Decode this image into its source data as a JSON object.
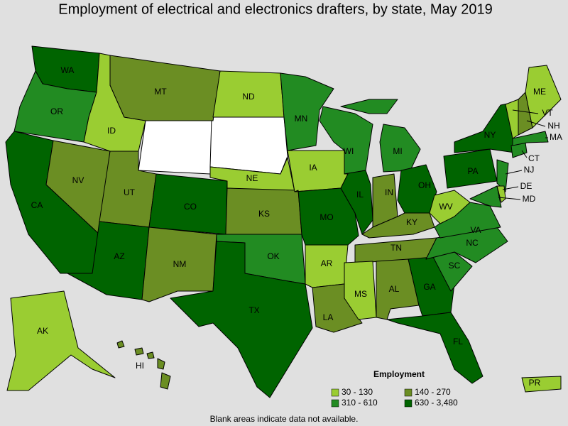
{
  "title": "Employment of electrical and electronics drafters, by state, May 2019",
  "legend": {
    "title": "Employment",
    "items": [
      {
        "label": "30 - 130",
        "color": "#9acd32"
      },
      {
        "label": "140 - 270",
        "color": "#6b8e23"
      },
      {
        "label": "310 - 610",
        "color": "#228b22"
      },
      {
        "label": "630 - 3,480",
        "color": "#006400"
      }
    ]
  },
  "states": [
    {
      "abbr": "WA",
      "employment": "630 - 3,480"
    },
    {
      "abbr": "OR",
      "employment": "310 - 610"
    },
    {
      "abbr": "CA",
      "employment": "630 - 3,480"
    },
    {
      "abbr": "NV",
      "employment": "140 - 270"
    },
    {
      "abbr": "ID",
      "employment": "30 - 130"
    },
    {
      "abbr": "MT",
      "employment": "140 - 270"
    },
    {
      "abbr": "UT",
      "employment": "140 - 270"
    },
    {
      "abbr": "AZ",
      "employment": "630 - 3,480"
    },
    {
      "abbr": "CO",
      "employment": "630 - 3,480"
    },
    {
      "abbr": "NM",
      "employment": "140 - 270"
    },
    {
      "abbr": "ND",
      "employment": "30 - 130"
    },
    {
      "abbr": "NE",
      "employment": "30 - 130"
    },
    {
      "abbr": "KS",
      "employment": "140 - 270"
    },
    {
      "abbr": "OK",
      "employment": "310 - 610"
    },
    {
      "abbr": "TX",
      "employment": "630 - 3,480"
    },
    {
      "abbr": "MN",
      "employment": "310 - 610"
    },
    {
      "abbr": "IA",
      "employment": "30 - 130"
    },
    {
      "abbr": "MO",
      "employment": "630 - 3,480"
    },
    {
      "abbr": "AR",
      "employment": "30 - 130"
    },
    {
      "abbr": "LA",
      "employment": "140 - 270"
    },
    {
      "abbr": "WI",
      "employment": "310 - 610"
    },
    {
      "abbr": "MI",
      "employment": "310 - 610"
    },
    {
      "abbr": "IL",
      "employment": "630 - 3,480"
    },
    {
      "abbr": "IN",
      "employment": "140 - 270"
    },
    {
      "abbr": "OH",
      "employment": "630 - 3,480"
    },
    {
      "abbr": "KY",
      "employment": "140 - 270"
    },
    {
      "abbr": "TN",
      "employment": "140 - 270"
    },
    {
      "abbr": "MS",
      "employment": "30 - 130"
    },
    {
      "abbr": "AL",
      "employment": "140 - 270"
    },
    {
      "abbr": "GA",
      "employment": "630 - 3,480"
    },
    {
      "abbr": "FL",
      "employment": "630 - 3,480"
    },
    {
      "abbr": "SC",
      "employment": "310 - 610"
    },
    {
      "abbr": "NC",
      "employment": "310 - 610"
    },
    {
      "abbr": "VA",
      "employment": "310 - 610"
    },
    {
      "abbr": "WV",
      "employment": "30 - 130"
    },
    {
      "abbr": "PA",
      "employment": "630 - 3,480"
    },
    {
      "abbr": "NY",
      "employment": "630 - 3,480"
    },
    {
      "abbr": "NJ",
      "employment": "310 - 610"
    },
    {
      "abbr": "MD",
      "employment": "310 - 610"
    },
    {
      "abbr": "DE",
      "employment": "30 - 130"
    },
    {
      "abbr": "CT",
      "employment": "310 - 610"
    },
    {
      "abbr": "MA",
      "employment": "310 - 610"
    },
    {
      "abbr": "VT",
      "employment": "30 - 130"
    },
    {
      "abbr": "NH",
      "employment": "140 - 270"
    },
    {
      "abbr": "ME",
      "employment": "30 - 130"
    },
    {
      "abbr": "AK",
      "employment": "30 - 130"
    },
    {
      "abbr": "HI",
      "employment": "140 - 270"
    },
    {
      "abbr": "PR",
      "employment": "30 - 130"
    }
  ],
  "note": "Blank areas indicate data not available."
}
